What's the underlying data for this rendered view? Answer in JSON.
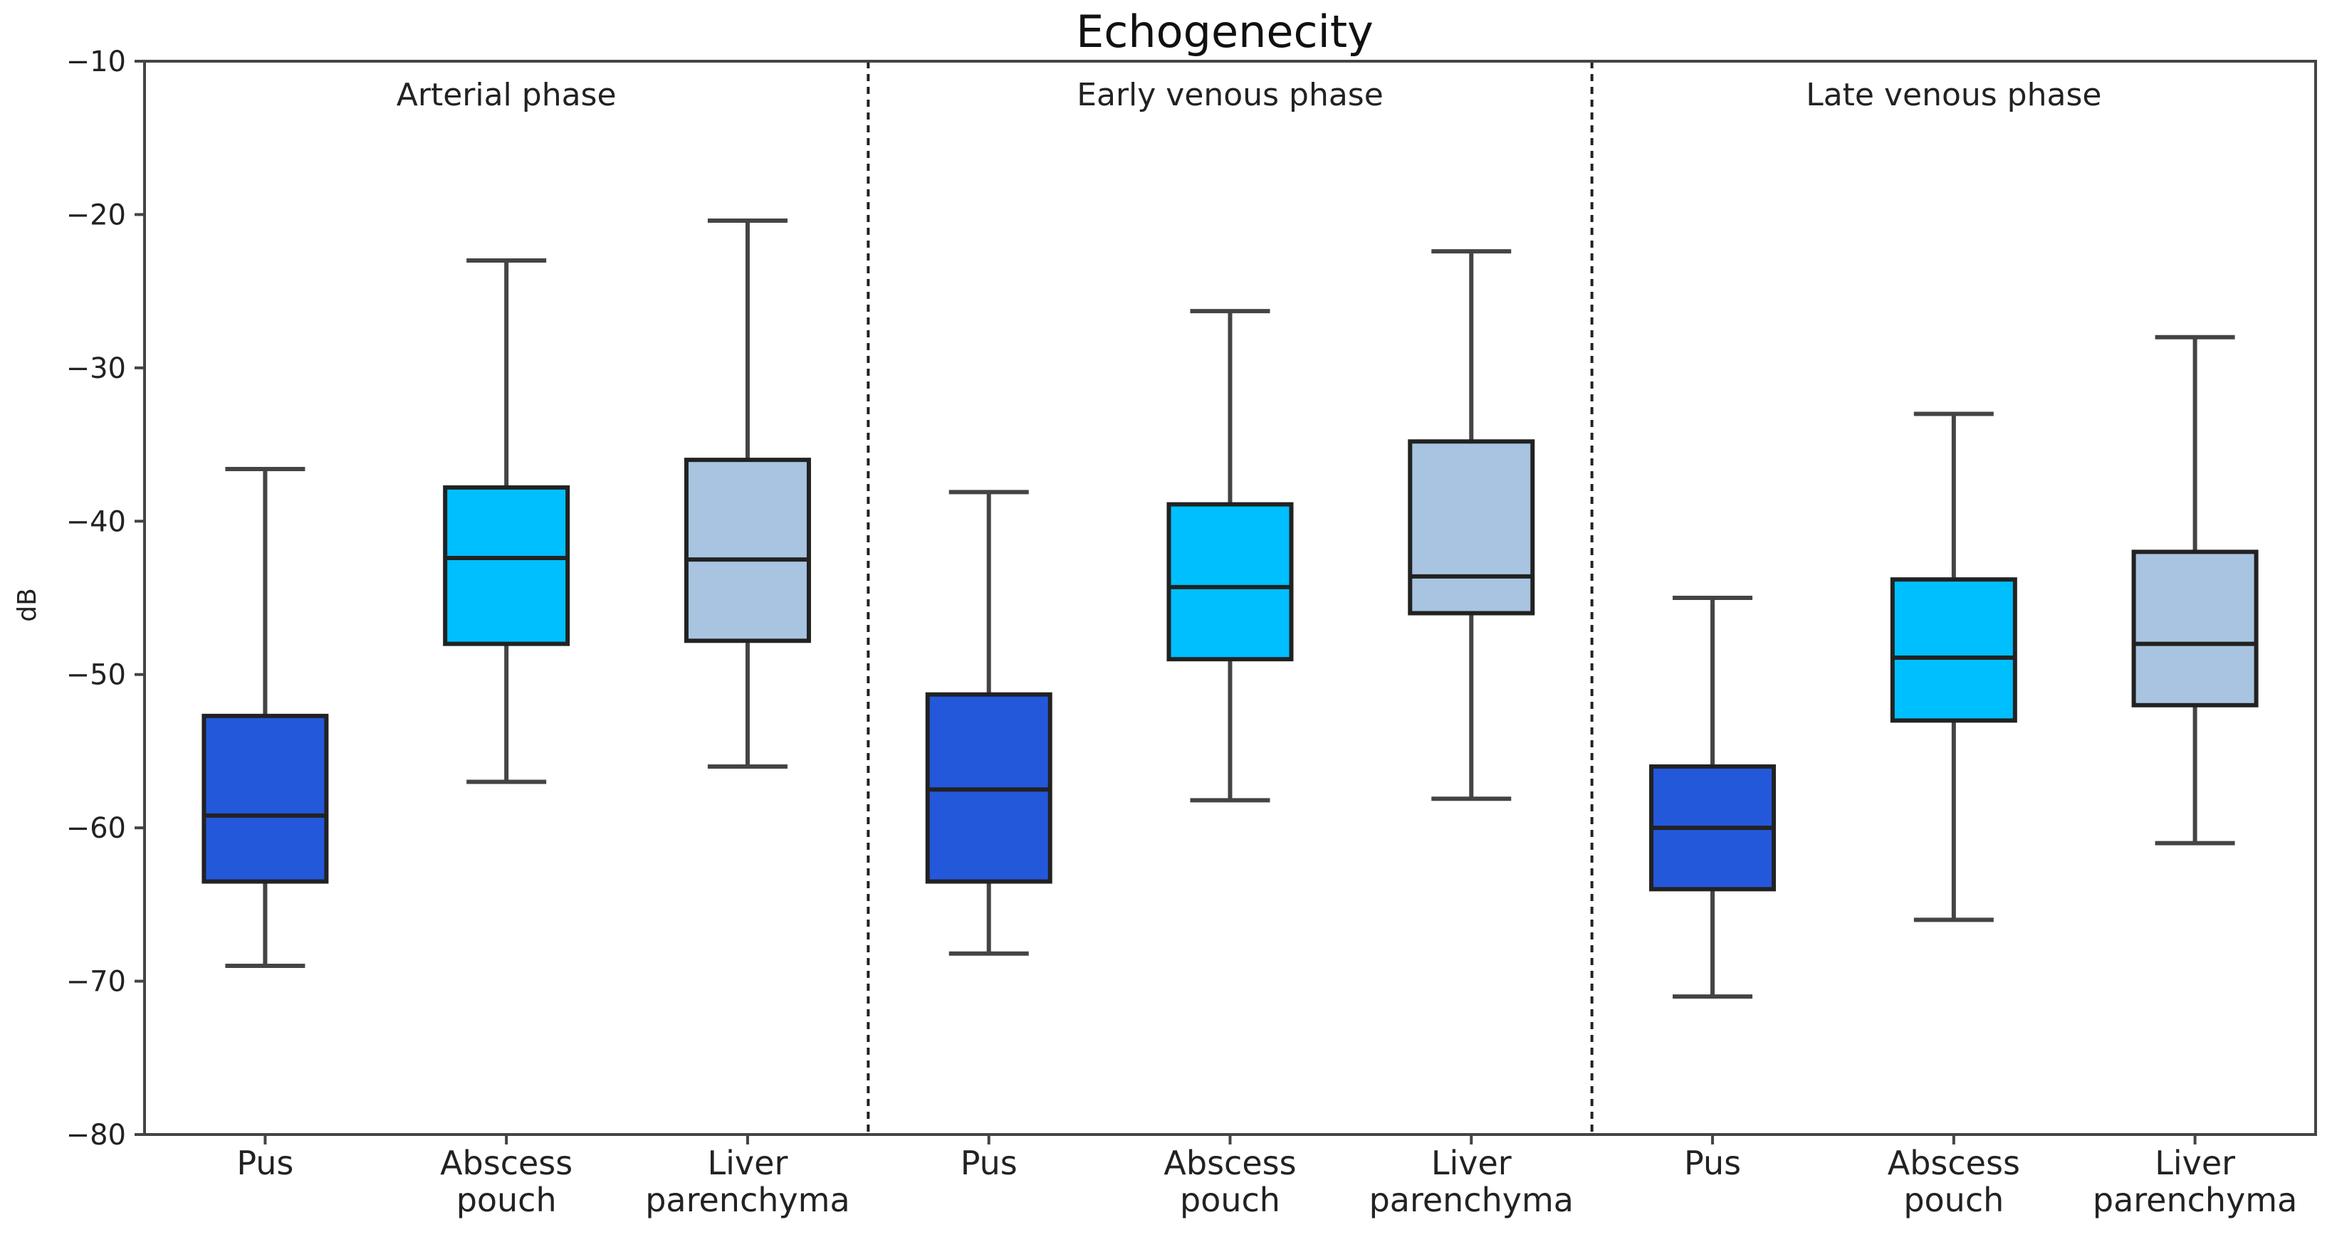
{
  "chart_data": {
    "type": "box",
    "title": "Echogenecity",
    "xlabel": "",
    "ylabel": "dB",
    "ylim": [
      -80,
      -10
    ],
    "yticks": [
      -10,
      -20,
      -30,
      -40,
      -50,
      -60,
      -70,
      -80
    ],
    "categories": [
      [
        "Pus"
      ],
      [
        "Abscess",
        "pouch"
      ],
      [
        "Liver",
        "parenchyma"
      ]
    ],
    "colors": {
      "Pus": "#2458db",
      "Abscess pouch": "#00bfff",
      "Liver parenchyma": "#a8c4e0",
      "edge": "#222222",
      "divider": "#222222"
    },
    "panels": [
      {
        "name": "Arterial phase",
        "boxes": [
          {
            "category": "Pus",
            "whisker_low": -69,
            "q1": -63.5,
            "median": -59.2,
            "q3": -52.7,
            "whisker_high": -36.6
          },
          {
            "category": "Abscess pouch",
            "whisker_low": -57,
            "q1": -48,
            "median": -42.4,
            "q3": -37.8,
            "whisker_high": -23
          },
          {
            "category": "Liver parenchyma",
            "whisker_low": -56,
            "q1": -47.8,
            "median": -42.5,
            "q3": -36,
            "whisker_high": -20.4
          }
        ]
      },
      {
        "name": "Early venous phase",
        "boxes": [
          {
            "category": "Pus",
            "whisker_low": -68.2,
            "q1": -63.5,
            "median": -57.5,
            "q3": -51.3,
            "whisker_high": -38.1
          },
          {
            "category": "Abscess pouch",
            "whisker_low": -58.2,
            "q1": -49,
            "median": -44.3,
            "q3": -38.9,
            "whisker_high": -26.3
          },
          {
            "category": "Liver parenchyma",
            "whisker_low": -58.1,
            "q1": -46,
            "median": -43.6,
            "q3": -34.8,
            "whisker_high": -22.4
          }
        ]
      },
      {
        "name": "Late venous phase",
        "boxes": [
          {
            "category": "Pus",
            "whisker_low": -71,
            "q1": -64,
            "median": -60,
            "q3": -56,
            "whisker_high": -45
          },
          {
            "category": "Abscess pouch",
            "whisker_low": -66,
            "q1": -53,
            "median": -48.9,
            "q3": -43.8,
            "whisker_high": -33
          },
          {
            "category": "Liver parenchyma",
            "whisker_low": -61,
            "q1": -52,
            "median": -48,
            "q3": -42,
            "whisker_high": -28
          }
        ]
      }
    ]
  }
}
